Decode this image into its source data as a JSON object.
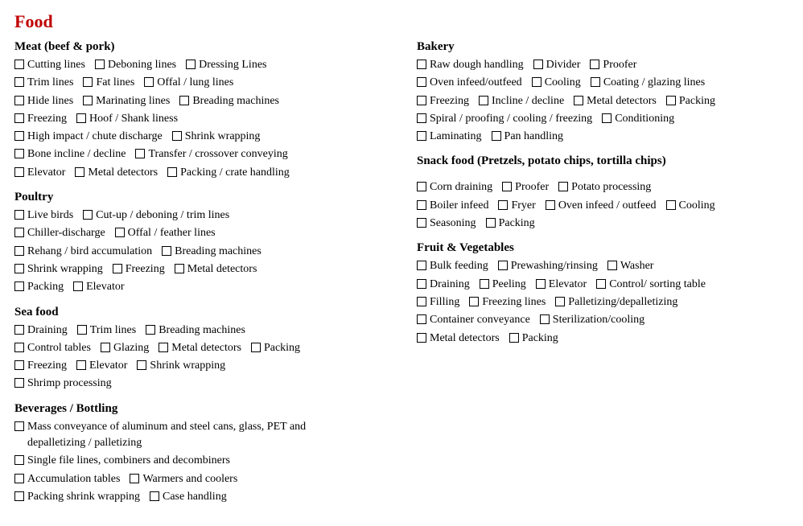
{
  "title": "Food",
  "left": [
    {
      "title": "Meat (beef & pork)",
      "rows": [
        [
          "Cutting lines",
          "Deboning lines",
          "Dressing Lines"
        ],
        [
          "Trim lines",
          "Fat lines",
          "Offal / lung lines"
        ],
        [
          "Hide lines",
          "Marinating lines",
          "Breading machines"
        ],
        [
          "Freezing",
          "Hoof / Shank liness"
        ],
        [
          "High impact / chute discharge",
          "Shrink wrapping"
        ],
        [
          "Bone incline / decline",
          "Transfer / crossover conveying"
        ],
        [
          "Elevator",
          "Metal detectors",
          "Packing / crate handling"
        ]
      ]
    },
    {
      "title": "Poultry",
      "rows": [
        [
          "Live birds",
          "Cut-up / deboning / trim lines"
        ],
        [
          "Chiller-discharge",
          "Offal / feather lines"
        ],
        [
          "Rehang / bird accumulation",
          "Breading machines"
        ],
        [
          "Shrink wrapping",
          "Freezing",
          "Metal detectors"
        ],
        [
          "Packing",
          "Elevator"
        ]
      ]
    },
    {
      "title": "Sea food",
      "rows": [
        [
          "Draining",
          "Trim lines",
          "Breading machines"
        ],
        [
          "Control tables",
          "Glazing",
          "Metal detectors",
          "Packing"
        ],
        [
          "Freezing",
          "Elevator",
          "Shrink wrapping"
        ],
        [
          "Shrimp processing"
        ]
      ]
    },
    {
      "title": "Beverages / Bottling",
      "rows": [
        [
          {
            "label": "Mass conveyance of aluminum and steel cans, glass, PET and depalletizing / palletizing",
            "wrap": true
          }
        ],
        [
          "Single file lines, combiners and decombiners"
        ],
        [
          "Accumulation tables",
          "Warmers and coolers"
        ],
        [
          "Packing shrink wrapping",
          "Case handling"
        ]
      ]
    }
  ],
  "right": [
    {
      "title": "Bakery",
      "rows": [
        [
          "Raw dough handling",
          "Divider",
          "Proofer"
        ],
        [
          "Oven infeed/outfeed",
          "Cooling",
          "Coating / glazing lines"
        ],
        [
          "Freezing",
          "Incline / decline",
          "Metal detectors",
          "Packing"
        ],
        [
          "Spiral / proofing / cooling / freezing",
          "Conditioning"
        ],
        [
          "Laminating",
          "Pan handling"
        ]
      ]
    },
    {
      "title": "Snack food (Pretzels, potato chips, tortilla chips)",
      "gap": true,
      "rows": [
        [
          "Corn draining",
          "Proofer",
          "Potato processing"
        ],
        [
          "Boiler infeed",
          "Fryer",
          "Oven infeed / outfeed",
          "Cooling"
        ],
        [
          "Seasoning",
          "Packing"
        ]
      ]
    },
    {
      "title": "Fruit & Vegetables",
      "rows": [
        [
          "Bulk feeding",
          "Prewashing/rinsing",
          "Washer"
        ],
        [
          "Draining",
          "Peeling",
          "Elevator",
          "Control/ sorting table"
        ],
        [
          "Filling",
          "Freezing lines",
          "Palletizing/depalletizing"
        ],
        [
          "Container conveyance",
          "Sterilization/cooling"
        ],
        [
          "Metal detectors",
          "Packing"
        ]
      ]
    }
  ]
}
